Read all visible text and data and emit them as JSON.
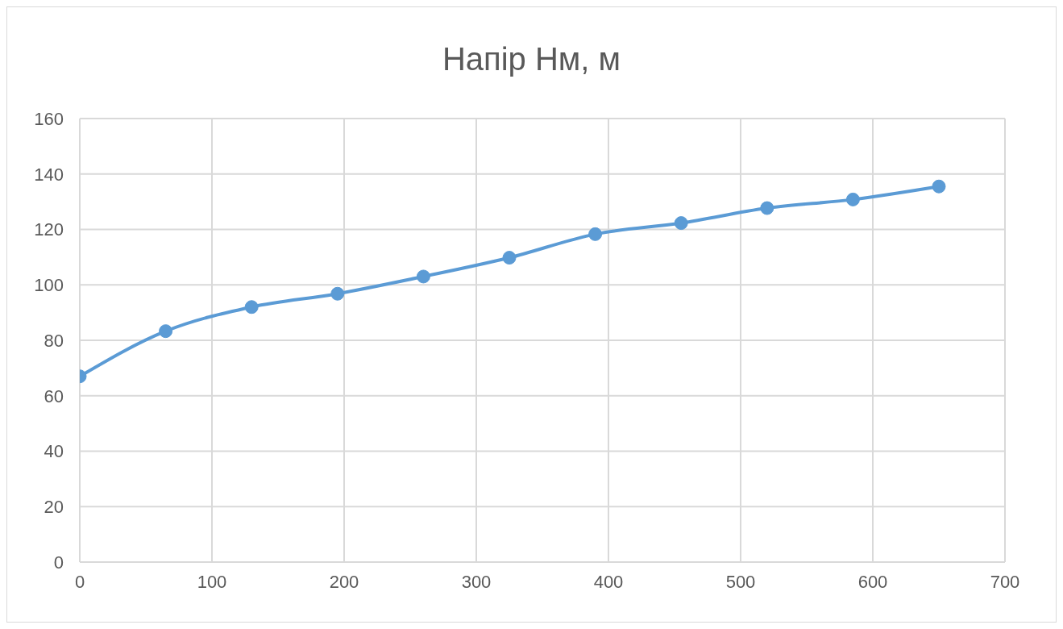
{
  "chart_data": {
    "type": "line",
    "title": "Напір Нм, м",
    "x": [
      0,
      65,
      130,
      195,
      260,
      325,
      390,
      455,
      520,
      585,
      650
    ],
    "series": [
      {
        "color": "#5b9bd5",
        "values": [
          67,
          83.3,
          92,
          96.8,
          103,
          109.8,
          118.3,
          122.3,
          127.7,
          130.8,
          135.5
        ]
      }
    ],
    "xlim": [
      0,
      700
    ],
    "xticks": [
      0,
      100,
      200,
      300,
      400,
      500,
      600,
      700
    ],
    "ylim": [
      0,
      160
    ],
    "yticks": [
      0,
      20,
      40,
      60,
      80,
      100,
      120,
      140,
      160
    ],
    "grid": true,
    "marker": "circle",
    "line_style": "solid"
  }
}
